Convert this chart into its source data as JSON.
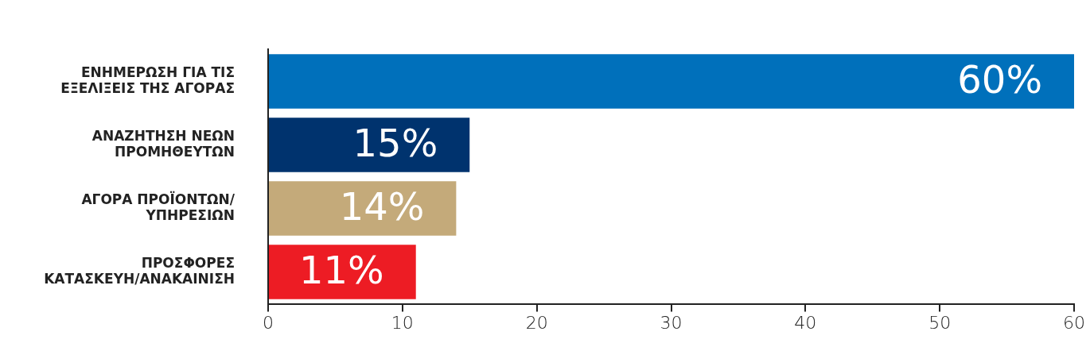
{
  "chart_data": {
    "type": "bar",
    "orientation": "horizontal",
    "categories": [
      "ΕΝΗΜΕΡΩΣΗ ΓΙΑ ΤΙΣ\nΕΞΕΛΙΞΕΙΣ ΤΗΣ ΑΓΟΡΑΣ",
      "ΑΝΑΖΗΤΗΣΗ ΝΕΩΝ\nΠΡΟΜΗΘΕΥΤΩΝ",
      "ΑΓΟΡΑ ΠΡΟΪΟΝΤΩΝ/\nΥΠΗΡΕΣΙΩΝ",
      "ΠΡΟΣΦΟΡΕΣ\nΚΑΤΑΣΚΕΥΗ/ΑΝΑΚΑΙΝΙΣΗ"
    ],
    "values": [
      60,
      15,
      14,
      11
    ],
    "colors": [
      "#0070bb",
      "#00336e",
      "#c4aa7a",
      "#ed1c24"
    ],
    "value_labels": [
      "60%",
      "15%",
      "14%",
      "11%"
    ],
    "xlim": [
      0,
      60
    ],
    "xticks": [
      0,
      10,
      20,
      30,
      40,
      50,
      60
    ],
    "grid": false,
    "legend": false
  }
}
